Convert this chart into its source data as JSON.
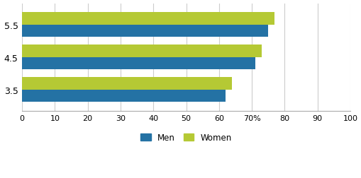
{
  "categories": [
    "3.5",
    "4.5",
    "5.5"
  ],
  "men_values": [
    62,
    71,
    75
  ],
  "women_values": [
    64,
    73,
    77
  ],
  "men_color": "#2472a4",
  "women_color": "#b5c934",
  "bar_height": 0.38,
  "xlim": [
    0,
    100
  ],
  "xtick_values": [
    0,
    10,
    20,
    30,
    40,
    50,
    60,
    70,
    80,
    90,
    100
  ],
  "xtick_labels": [
    "0",
    "10",
    "20",
    "30",
    "40",
    "50",
    "60",
    "70%",
    "80",
    "90",
    "100"
  ],
  "ytick_positions": [
    3.5,
    4.5,
    5.5
  ],
  "background_color": "#ffffff",
  "grid_color": "#cccccc",
  "legend_labels": [
    "Men",
    "Women"
  ]
}
